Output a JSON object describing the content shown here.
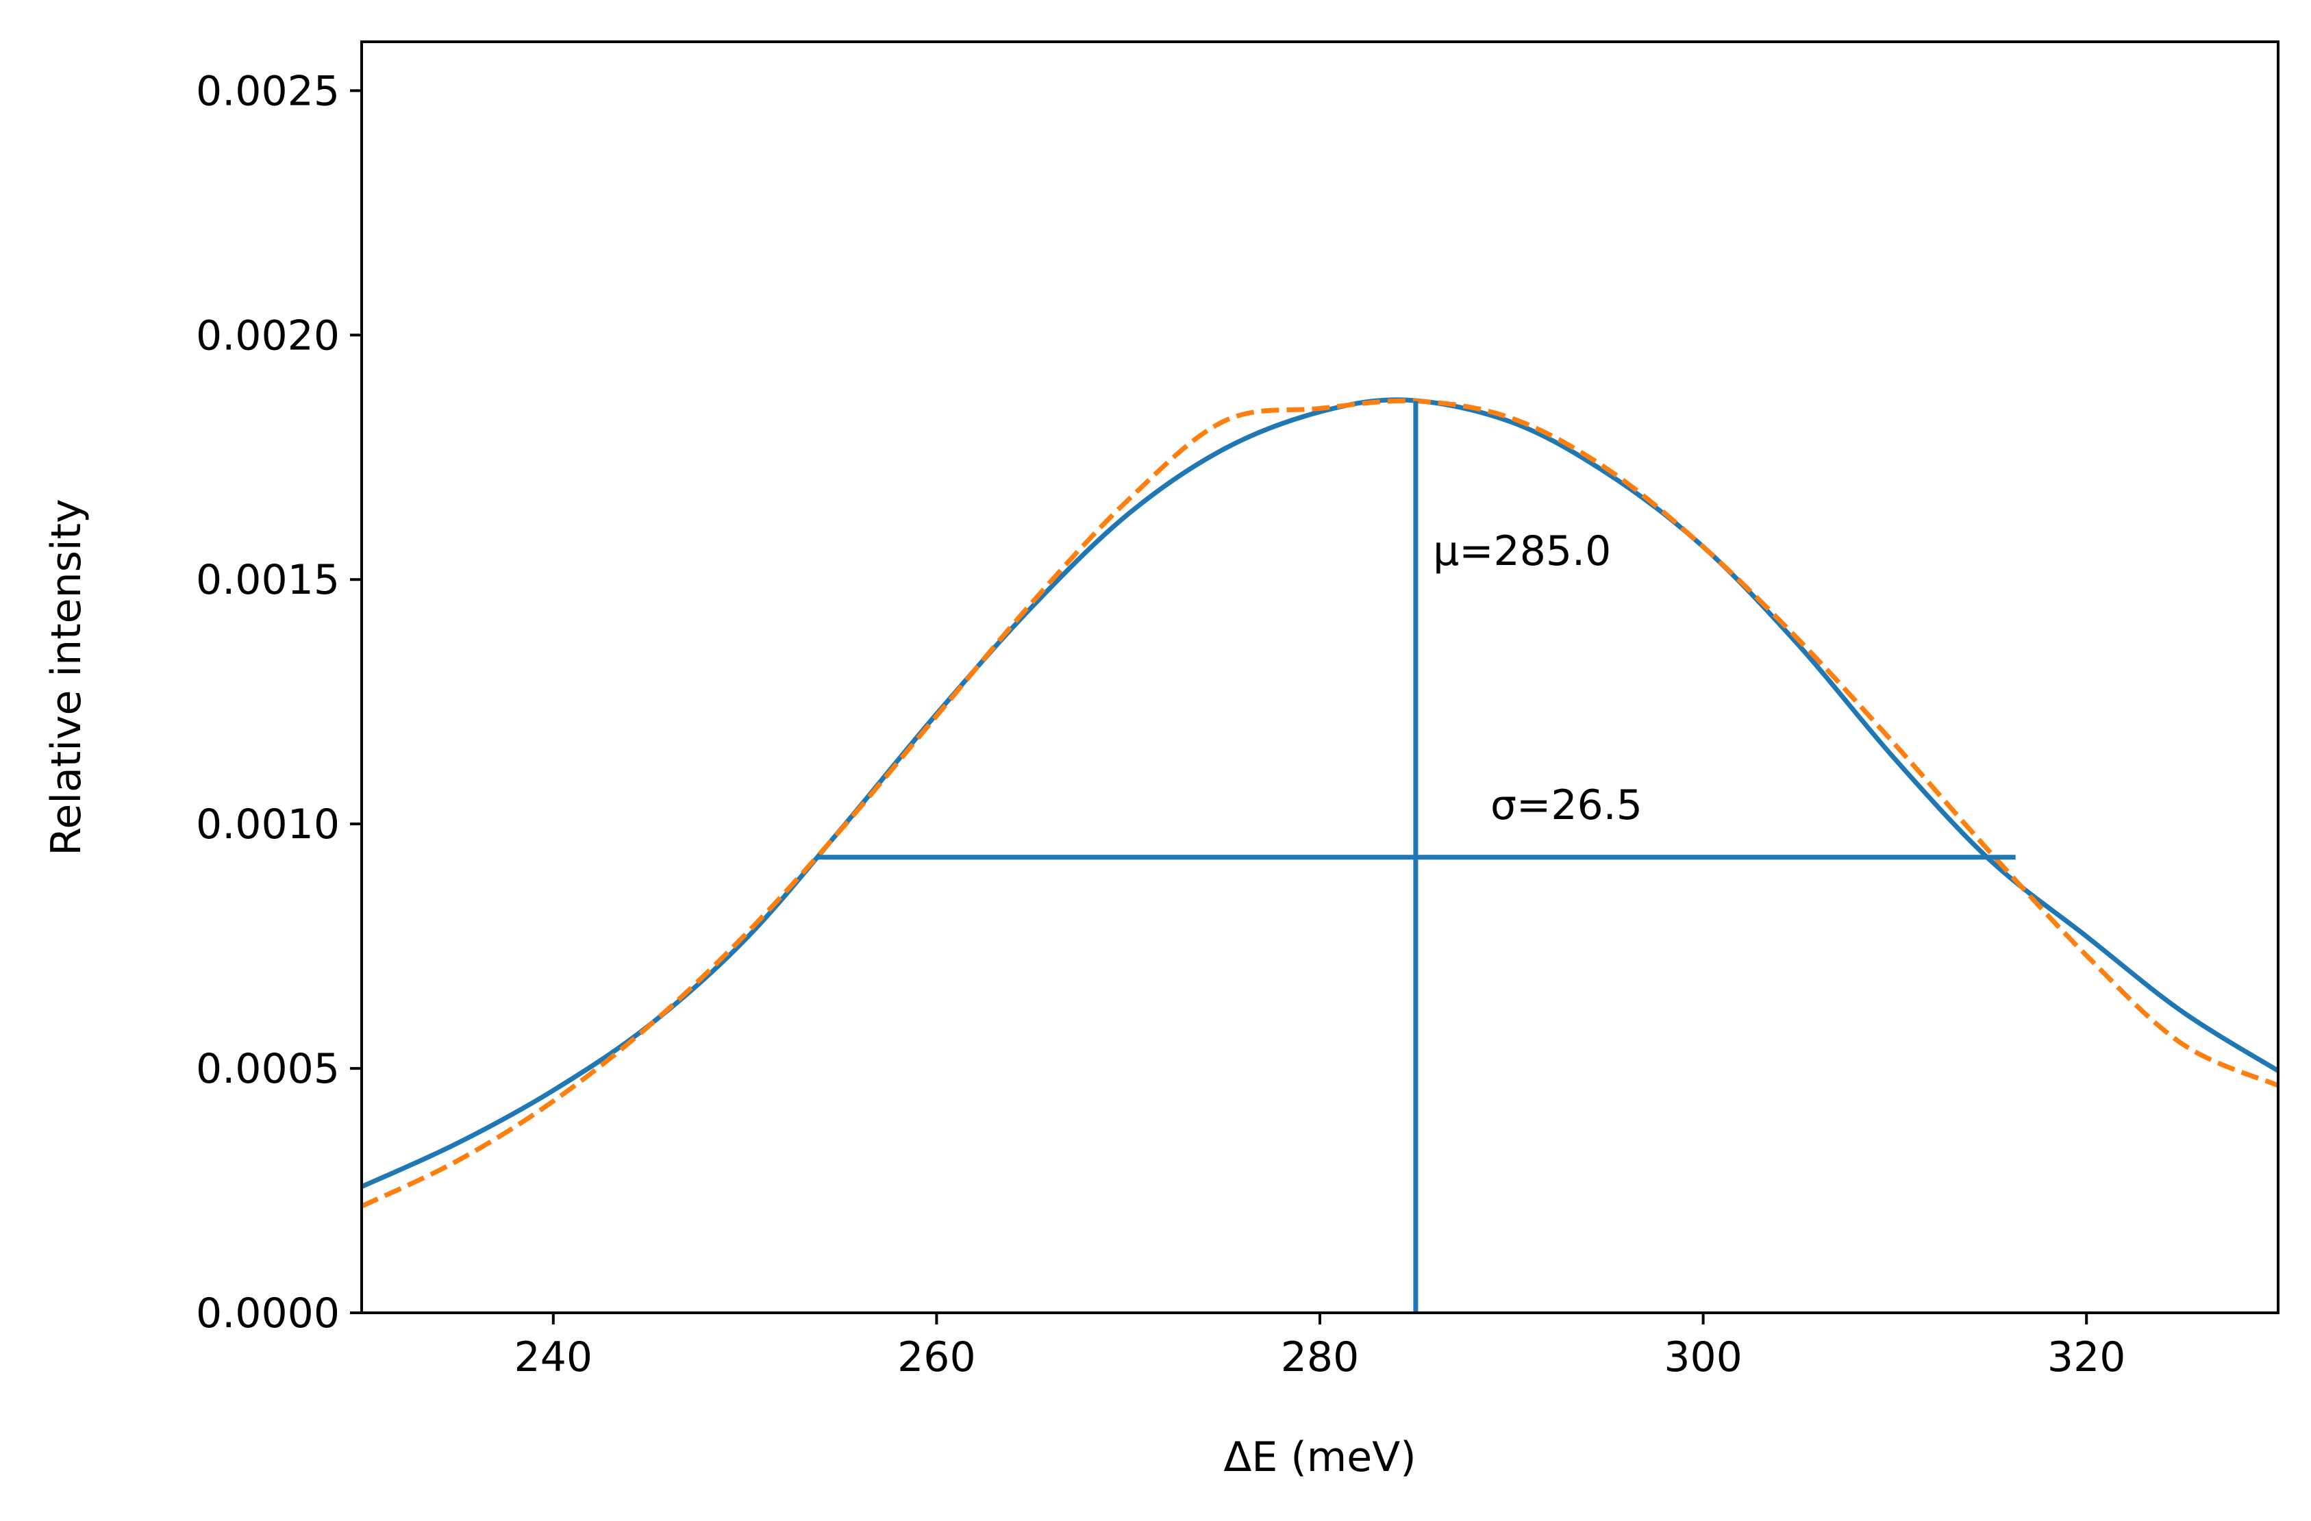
{
  "chart_data": {
    "type": "line",
    "title": "",
    "xlabel": "ΔE (meV)",
    "ylabel": "Relative intensity",
    "xlim": [
      230,
      330
    ],
    "ylim": [
      0,
      0.0026
    ],
    "xticks": [
      240,
      260,
      280,
      300,
      320
    ],
    "xtick_labels": [
      "240",
      "260",
      "280",
      "300",
      "320"
    ],
    "yticks": [
      0,
      0.0005,
      0.001,
      0.0015,
      0.002,
      0.0025
    ],
    "ytick_labels": [
      "0.0000",
      "0.0005",
      "0.0010",
      "0.0015",
      "0.0020",
      "0.0025"
    ],
    "grid": false,
    "legend": "none",
    "series": [
      {
        "style": "solid",
        "color": "#1f77b4",
        "x": [
          230,
          235,
          240,
          245,
          250,
          255,
          260,
          265,
          270,
          275,
          280,
          284.6,
          290,
          295,
          300,
          305,
          310,
          315,
          320,
          325,
          330
        ],
        "y": [
          0.000258,
          0.000347,
          0.000455,
          0.000588,
          0.000763,
          0.000989,
          0.001225,
          0.001445,
          0.001634,
          0.001767,
          0.001843,
          0.001867,
          0.001822,
          0.001717,
          0.001567,
          0.001365,
          0.001133,
          0.000925,
          0.00077,
          0.000616,
          0.000495
        ]
      },
      {
        "style": "dashed",
        "color": "#ff7f0e",
        "x": [
          230,
          235,
          240,
          245,
          250,
          255,
          260,
          265,
          270,
          275,
          280,
          285,
          290,
          295,
          300,
          305,
          310,
          315,
          320,
          325,
          330
        ],
        "y": [
          0.000218,
          0.000311,
          0.000433,
          0.000587,
          0.000773,
          0.000988,
          0.001221,
          0.001454,
          0.001663,
          0.001824,
          0.00185,
          0.001865,
          0.00183,
          0.001726,
          0.001567,
          0.001376,
          0.001163,
          0.000941,
          0.000731,
          0.00055,
          0.000465
        ]
      }
    ],
    "markers": {
      "mean": {
        "x": 285.0,
        "y_from": 0,
        "y_to": 0.001865,
        "label": "μ=285.0",
        "label_x": 285.9,
        "label_y": 0.00153
      },
      "width": {
        "y": 0.000932,
        "x_from": 253.8,
        "x_to": 316.3,
        "label": "σ=26.5",
        "label_x": 288.9,
        "label_y": 0.00101
      }
    }
  }
}
